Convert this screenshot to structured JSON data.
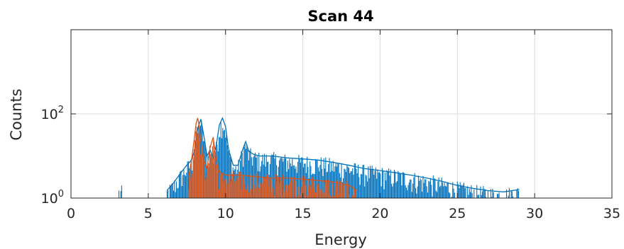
{
  "chart_data": {
    "type": "line",
    "title": "Scan 44",
    "xlabel": "Energy",
    "ylabel": "Counts",
    "xlim": [
      0,
      35
    ],
    "ylim": [
      1,
      10000
    ],
    "yscale": "log",
    "grid": true,
    "x_ticks": [
      "0",
      "5",
      "10",
      "15",
      "20",
      "25",
      "30",
      "35"
    ],
    "y_ticks": [
      {
        "base": "10",
        "exp": "0"
      },
      {
        "base": "10",
        "exp": "2"
      }
    ],
    "series": [
      {
        "color": "#0072BD",
        "x": [
          3.1,
          6.2,
          6.6,
          7.0,
          7.4,
          7.8,
          8.0,
          8.2,
          8.4,
          8.6,
          8.8,
          9.0,
          9.2,
          9.4,
          9.6,
          9.8,
          10.0,
          10.2,
          10.5,
          10.8,
          11.1,
          11.3,
          11.5,
          11.8,
          12.2,
          13.0,
          14.0,
          15.0,
          16.0,
          17.0,
          18.0,
          19.0,
          20.0,
          21.0,
          22.0,
          23.0,
          24.0,
          25.0,
          26.0,
          27.0,
          28.0,
          29.0
        ],
        "y": [
          1.6,
          1.5,
          2.2,
          3.5,
          5.5,
          8,
          14,
          45,
          75,
          30,
          10,
          14,
          9,
          18,
          55,
          80,
          50,
          14,
          6,
          6,
          14,
          22,
          13,
          11,
          10,
          10,
          9,
          8.5,
          8,
          7,
          6,
          5,
          4.5,
          4,
          3.5,
          3,
          2.5,
          2,
          1.7,
          1.5,
          1.4,
          1.6
        ]
      },
      {
        "color": "#D95319",
        "x": [
          7.6,
          7.8,
          8.0,
          8.1,
          8.2,
          8.3,
          8.4,
          8.6,
          8.8,
          9.0,
          9.2,
          9.4,
          9.6,
          10.0,
          11.0,
          12.0,
          13.0,
          14.0,
          15.0,
          16.0,
          17.0,
          18.0,
          18.5
        ],
        "y": [
          3,
          8,
          30,
          60,
          80,
          50,
          22,
          8,
          5,
          16,
          28,
          8,
          4,
          3.5,
          3.5,
          3.2,
          3,
          3,
          2.8,
          2.6,
          2.4,
          2,
          1.5
        ]
      }
    ]
  }
}
